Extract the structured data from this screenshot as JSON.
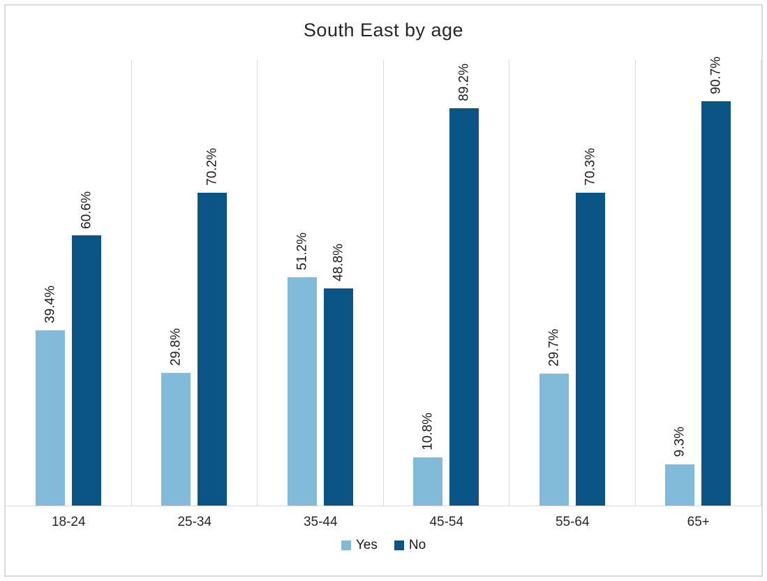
{
  "chart_data": {
    "type": "bar",
    "title": "South East by age",
    "categories": [
      "18-24",
      "25-34",
      "35-44",
      "45-54",
      "55-64",
      "65+"
    ],
    "series": [
      {
        "name": "Yes",
        "color": "#82BAD9",
        "values": [
          39.4,
          29.8,
          51.2,
          10.8,
          29.7,
          9.3
        ]
      },
      {
        "name": "No",
        "color": "#0A5486",
        "values": [
          60.6,
          70.2,
          48.8,
          89.2,
          70.3,
          90.7
        ]
      }
    ],
    "data_label_suffix": "%",
    "data_label_rotation_deg": 90,
    "ylim": [
      0,
      100
    ],
    "y_axis_visible": false,
    "grid": "vertical-category-separators",
    "gridline_color": "#D9D9D9",
    "axis_line_color": "#D9D9D9",
    "frame_border_color": "#D9D9D9",
    "legend_position": "bottom",
    "legend_entries": [
      "Yes",
      "No"
    ]
  }
}
